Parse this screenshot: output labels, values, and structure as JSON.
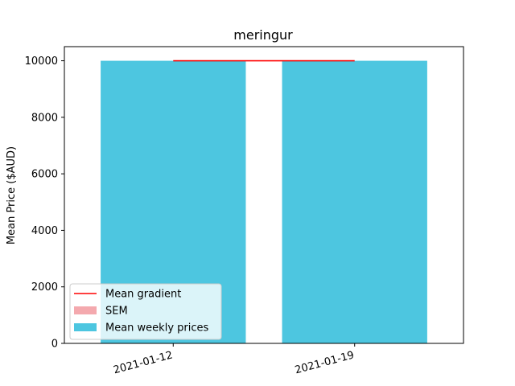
{
  "chart_data": {
    "type": "bar",
    "title": "meringur",
    "xlabel": "",
    "ylabel": "Mean Price ($AUD)",
    "categories": [
      "2021-01-12",
      "2021-01-19"
    ],
    "series": [
      {
        "name": "Mean weekly prices",
        "values": [
          10000,
          10000
        ],
        "color": "#4dc6e0"
      }
    ],
    "sem": {
      "name": "SEM",
      "values": [
        0,
        0
      ],
      "color": "#f4a9ae"
    },
    "gradient_line": {
      "name": "Mean gradient",
      "x": [
        "2021-01-12",
        "2021-01-19"
      ],
      "y": [
        10000,
        10000
      ],
      "color": "#ff0000"
    },
    "ylim": [
      0,
      10500
    ],
    "yticks": [
      0,
      2000,
      4000,
      6000,
      8000,
      10000
    ],
    "grid": false,
    "legend_position": "lower-left"
  }
}
